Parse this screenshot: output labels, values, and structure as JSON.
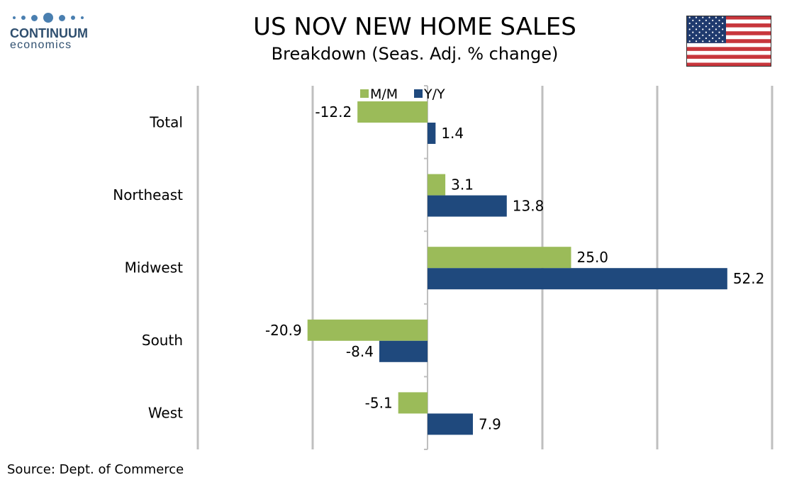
{
  "header": {
    "logo_name": "CONTINUUM",
    "logo_sub": "economics",
    "title": "US NOV NEW HOME SALES",
    "subtitle": "Breakdown (Seas. Adj. % change)",
    "flag_icon": "us-flag-icon"
  },
  "footer": {
    "source": "Source: Dept. of Commerce"
  },
  "colors": {
    "mm": "#9bbb59",
    "yy": "#1f497d",
    "grid": "#bfbfbf",
    "logo": "#4a7fb0"
  },
  "chart_data": {
    "type": "bar",
    "orientation": "horizontal",
    "categories": [
      "Total",
      "Northeast",
      "Midwest",
      "South",
      "West"
    ],
    "series": [
      {
        "name": "M/M",
        "values": [
          -12.2,
          3.1,
          25.0,
          -20.9,
          -5.1
        ],
        "labels": [
          "-12.2",
          "3.1",
          "25.0",
          "-20.9",
          "-5.1"
        ]
      },
      {
        "name": "Y/Y",
        "values": [
          1.4,
          13.8,
          52.2,
          -8.4,
          7.9
        ],
        "labels": [
          "1.4",
          "13.8",
          "52.2",
          "-8.4",
          "7.9"
        ]
      }
    ],
    "xlim": [
      -40,
      60
    ],
    "grid_step": 20,
    "grid": true,
    "legend_position": "top"
  }
}
